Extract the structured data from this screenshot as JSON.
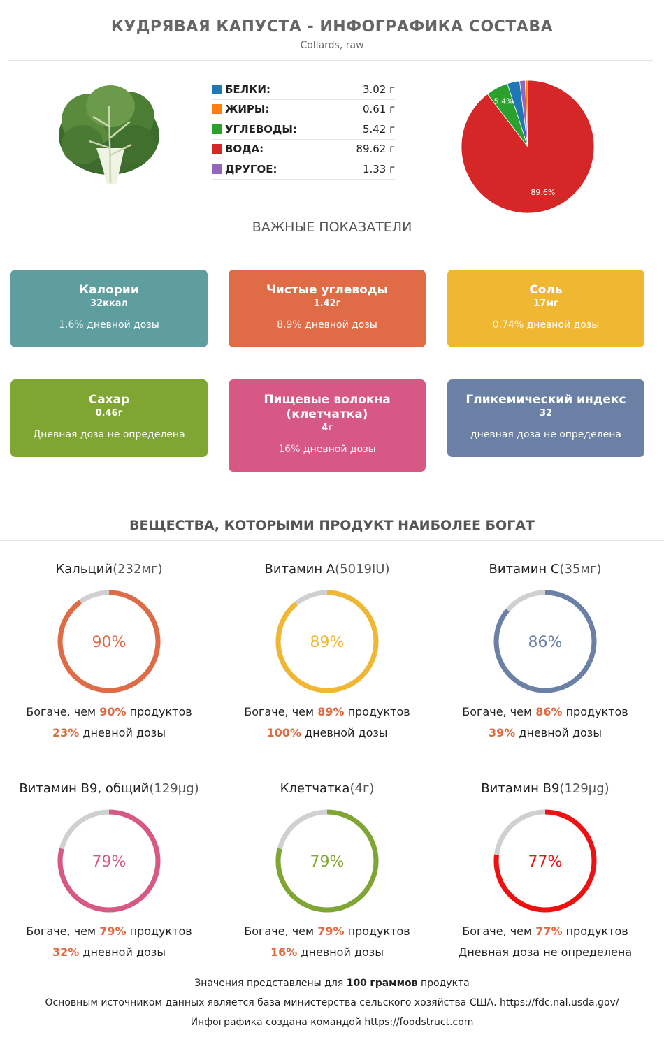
{
  "header": {
    "title": "КУДРЯВАЯ КАПУСТА - ИНФОГРАФИКА СОСТАВА",
    "subtitle": "Collards, raw"
  },
  "macros": [
    {
      "label": "БЕЛКИ:",
      "value": "3.02 г",
      "color": "#1f77b4"
    },
    {
      "label": "ЖИРЫ:",
      "value": "0.61 г",
      "color": "#ff7f0e"
    },
    {
      "label": "УГЛЕВОДЫ:",
      "value": "5.42 г",
      "color": "#2ca02c"
    },
    {
      "label": "ВОДА:",
      "value": "89.62 г",
      "color": "#d62728"
    },
    {
      "label": "ДРУГОЕ:",
      "value": "1.33 г",
      "color": "#9467bd"
    }
  ],
  "chart_data": {
    "type": "pie",
    "slices": [
      {
        "label": "Вода",
        "value": 89.62,
        "color": "#d62728",
        "pct_label": "89.6%"
      },
      {
        "label": "Углеводы",
        "value": 5.42,
        "color": "#2ca02c",
        "pct_label": "5.4%"
      },
      {
        "label": "Белки",
        "value": 3.02,
        "color": "#1f77b4",
        "pct_label": ""
      },
      {
        "label": "Другое",
        "value": 1.33,
        "color": "#9467bd",
        "pct_label": ""
      },
      {
        "label": "Жиры",
        "value": 0.61,
        "color": "#ff7f0e",
        "pct_label": ""
      }
    ]
  },
  "important": {
    "title": "ВАЖНЫЕ ПОКАЗАТЕЛИ",
    "cards": [
      {
        "name": "Калории",
        "value": "32ккал",
        "dose_pct": "1.6%",
        "dose_text": "дневной дозы",
        "color": "#5e9e9f"
      },
      {
        "name": "Чистые углеводы",
        "value": "1.42г",
        "dose_pct": "8.9%",
        "dose_text": "дневной дозы",
        "color": "#e06b47"
      },
      {
        "name": "Соль",
        "value": "17мг",
        "dose_pct": "0.74%",
        "dose_text": "дневной дозы",
        "color": "#f0b733"
      },
      {
        "name": "Сахар",
        "value": "0.46г",
        "dose_pct": "",
        "dose_text": "Дневная доза не определена",
        "color": "#7fa533"
      },
      {
        "name": "Пищевые волокна (клетчатка)",
        "value": "4г",
        "dose_pct": "16%",
        "dose_text": "дневной дозы",
        "color": "#d75884"
      },
      {
        "name": "Гликемический индекс",
        "value": "32",
        "dose_pct": "",
        "dose_text": "дневная доза не определена",
        "color": "#6a80a5"
      }
    ]
  },
  "rich": {
    "title": "ВЕЩЕСТВА, КОТОРЫМИ ПРОДУКТ НАИБОЛЕЕ БОГАТ",
    "items": [
      {
        "name": "Кальций",
        "amount": "(232мг)",
        "pct": 90,
        "pct_label": "90%",
        "richer_pre": "Богаче, чем",
        "richer_val": "90%",
        "richer_post": "продуктов",
        "dose_val": "23%",
        "dose_text": "дневной дозы",
        "color": "#e06b47"
      },
      {
        "name": "Витамин А",
        "amount": "(5019IU)",
        "pct": 89,
        "pct_label": "89%",
        "richer_pre": "Богаче, чем",
        "richer_val": "89%",
        "richer_post": "продуктов",
        "dose_val": "100%",
        "dose_text": "дневной дозы",
        "color": "#f0b733"
      },
      {
        "name": "Витамин С",
        "amount": "(35мг)",
        "pct": 86,
        "pct_label": "86%",
        "richer_pre": "Богаче, чем",
        "richer_val": "86%",
        "richer_post": "продуктов",
        "dose_val": "39%",
        "dose_text": "дневной дозы",
        "color": "#6a80a5"
      },
      {
        "name": "Витамин В9, общий",
        "amount": "(129µg)",
        "pct": 79,
        "pct_label": "79%",
        "richer_pre": "Богаче, чем",
        "richer_val": "79%",
        "richer_post": "продуктов",
        "dose_val": "32%",
        "dose_text": "дневной дозы",
        "color": "#d75884"
      },
      {
        "name": "Клетчатка",
        "amount": "(4г)",
        "pct": 79,
        "pct_label": "79%",
        "richer_pre": "Богаче, чем",
        "richer_val": "79%",
        "richer_post": "продуктов",
        "dose_val": "16%",
        "dose_text": "дневной дозы",
        "color": "#7fa533"
      },
      {
        "name": "Витамин В9",
        "amount": "(129µg)",
        "pct": 77,
        "pct_label": "77%",
        "richer_pre": "Богаче, чем",
        "richer_val": "77%",
        "richer_post": "продуктов",
        "dose_val": "",
        "dose_text": "Дневная доза не определена",
        "color": "#ee1111"
      }
    ]
  },
  "footer": {
    "line1_pre": "Значения представлены для",
    "line1_num": "100",
    "line1_bold": "граммов",
    "line1_post": "продукта",
    "line2": "Основным источником данных является база министерства сельского хозяйства США. https://fdc.nal.usda.gov/",
    "line3": "Инфографика создана командой https://foodstruct.com"
  }
}
